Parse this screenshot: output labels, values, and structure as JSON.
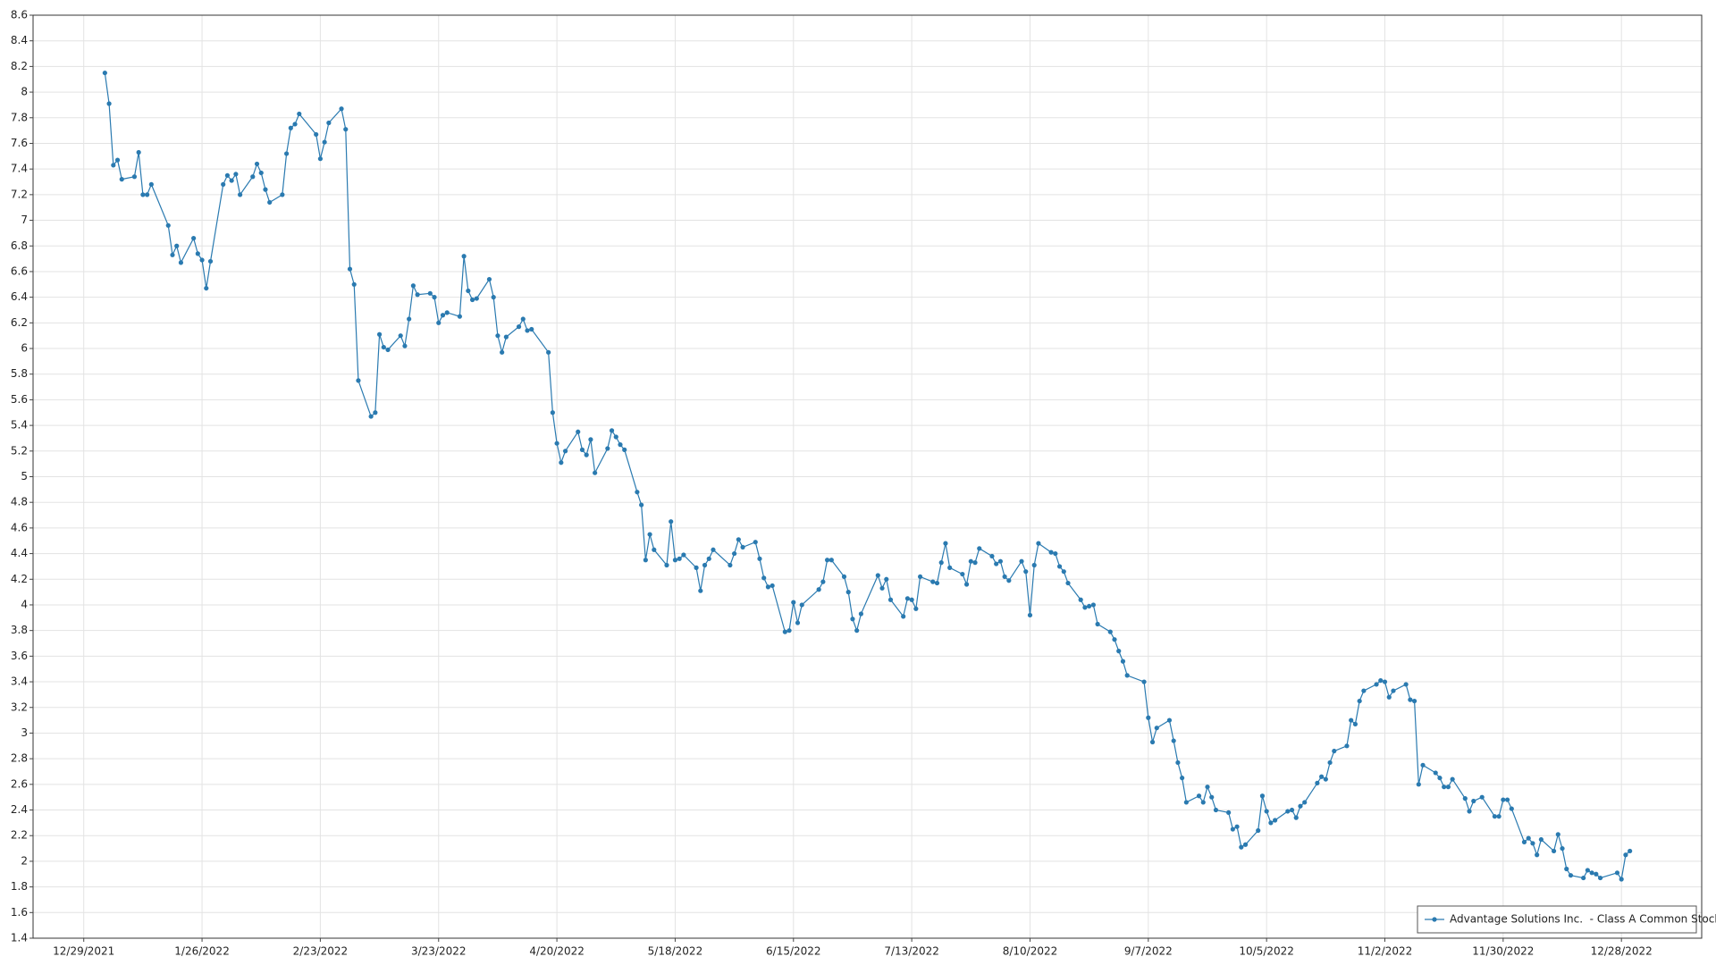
{
  "chart_data": {
    "type": "line",
    "x": [
      "1/3/2022",
      "1/4/2022",
      "1/5/2022",
      "1/6/2022",
      "1/7/2022",
      "1/10/2022",
      "1/11/2022",
      "1/12/2022",
      "1/13/2022",
      "1/14/2022",
      "1/18/2022",
      "1/19/2022",
      "1/20/2022",
      "1/21/2022",
      "1/24/2022",
      "1/25/2022",
      "1/26/2022",
      "1/27/2022",
      "1/28/2022",
      "1/31/2022",
      "2/1/2022",
      "2/2/2022",
      "2/3/2022",
      "2/4/2022",
      "2/7/2022",
      "2/8/2022",
      "2/9/2022",
      "2/10/2022",
      "2/11/2022",
      "2/14/2022",
      "2/15/2022",
      "2/16/2022",
      "2/17/2022",
      "2/18/2022",
      "2/22/2022",
      "2/23/2022",
      "2/24/2022",
      "2/25/2022",
      "2/28/2022",
      "3/1/2022",
      "3/2/2022",
      "3/3/2022",
      "3/4/2022",
      "3/7/2022",
      "3/8/2022",
      "3/9/2022",
      "3/10/2022",
      "3/11/2022",
      "3/14/2022",
      "3/15/2022",
      "3/16/2022",
      "3/17/2022",
      "3/18/2022",
      "3/21/2022",
      "3/22/2022",
      "3/23/2022",
      "3/24/2022",
      "3/25/2022",
      "3/28/2022",
      "3/29/2022",
      "3/30/2022",
      "3/31/2022",
      "4/1/2022",
      "4/4/2022",
      "4/5/2022",
      "4/6/2022",
      "4/7/2022",
      "4/8/2022",
      "4/11/2022",
      "4/12/2022",
      "4/13/2022",
      "4/14/2022",
      "4/18/2022",
      "4/19/2022",
      "4/20/2022",
      "4/21/2022",
      "4/22/2022",
      "4/25/2022",
      "4/26/2022",
      "4/27/2022",
      "4/28/2022",
      "4/29/2022",
      "5/2/2022",
      "5/3/2022",
      "5/4/2022",
      "5/5/2022",
      "5/6/2022",
      "5/9/2022",
      "5/10/2022",
      "5/11/2022",
      "5/12/2022",
      "5/13/2022",
      "5/16/2022",
      "5/17/2022",
      "5/18/2022",
      "5/19/2022",
      "5/20/2022",
      "5/23/2022",
      "5/24/2022",
      "5/25/2022",
      "5/26/2022",
      "5/27/2022",
      "5/31/2022",
      "6/1/2022",
      "6/2/2022",
      "6/3/2022",
      "6/6/2022",
      "6/7/2022",
      "6/8/2022",
      "6/9/2022",
      "6/10/2022",
      "6/13/2022",
      "6/14/2022",
      "6/15/2022",
      "6/16/2022",
      "6/17/2022",
      "6/21/2022",
      "6/22/2022",
      "6/23/2022",
      "6/24/2022",
      "6/27/2022",
      "6/28/2022",
      "6/29/2022",
      "6/30/2022",
      "7/1/2022",
      "7/5/2022",
      "7/6/2022",
      "7/7/2022",
      "7/8/2022",
      "7/11/2022",
      "7/12/2022",
      "7/13/2022",
      "7/14/2022",
      "7/15/2022",
      "7/18/2022",
      "7/19/2022",
      "7/20/2022",
      "7/21/2022",
      "7/22/2022",
      "7/25/2022",
      "7/26/2022",
      "7/27/2022",
      "7/28/2022",
      "7/29/2022",
      "8/1/2022",
      "8/2/2022",
      "8/3/2022",
      "8/4/2022",
      "8/5/2022",
      "8/8/2022",
      "8/9/2022",
      "8/10/2022",
      "8/11/2022",
      "8/12/2022",
      "8/15/2022",
      "8/16/2022",
      "8/17/2022",
      "8/18/2022",
      "8/19/2022",
      "8/22/2022",
      "8/23/2022",
      "8/24/2022",
      "8/25/2022",
      "8/26/2022",
      "8/29/2022",
      "8/30/2022",
      "8/31/2022",
      "9/1/2022",
      "9/2/2022",
      "9/6/2022",
      "9/7/2022",
      "9/8/2022",
      "9/9/2022",
      "9/12/2022",
      "9/13/2022",
      "9/14/2022",
      "9/15/2022",
      "9/16/2022",
      "9/19/2022",
      "9/20/2022",
      "9/21/2022",
      "9/22/2022",
      "9/23/2022",
      "9/26/2022",
      "9/27/2022",
      "9/28/2022",
      "9/29/2022",
      "9/30/2022",
      "10/3/2022",
      "10/4/2022",
      "10/5/2022",
      "10/6/2022",
      "10/7/2022",
      "10/10/2022",
      "10/11/2022",
      "10/12/2022",
      "10/13/2022",
      "10/14/2022",
      "10/17/2022",
      "10/18/2022",
      "10/19/2022",
      "10/20/2022",
      "10/21/2022",
      "10/24/2022",
      "10/25/2022",
      "10/26/2022",
      "10/27/2022",
      "10/28/2022",
      "10/31/2022",
      "11/1/2022",
      "11/2/2022",
      "11/3/2022",
      "11/4/2022",
      "11/7/2022",
      "11/8/2022",
      "11/9/2022",
      "11/10/2022",
      "11/11/2022",
      "11/14/2022",
      "11/15/2022",
      "11/16/2022",
      "11/17/2022",
      "11/18/2022",
      "11/21/2022",
      "11/22/2022",
      "11/23/2022",
      "11/25/2022",
      "11/28/2022",
      "11/29/2022",
      "11/30/2022",
      "12/1/2022",
      "12/2/2022",
      "12/5/2022",
      "12/6/2022",
      "12/7/2022",
      "12/8/2022",
      "12/9/2022",
      "12/12/2022",
      "12/13/2022",
      "12/14/2022",
      "12/15/2022",
      "12/16/2022",
      "12/19/2022",
      "12/20/2022",
      "12/21/2022",
      "12/22/2022",
      "12/23/2022",
      "12/27/2022",
      "12/28/2022",
      "12/29/2022",
      "12/30/2022"
    ],
    "series": [
      {
        "name": "Advantage Solutions Inc.  - Class A Common Stock",
        "color": "#2a7ab0",
        "values": [
          8.15,
          7.91,
          7.43,
          7.47,
          7.32,
          7.34,
          7.53,
          7.2,
          7.2,
          7.28,
          6.96,
          6.73,
          6.8,
          6.67,
          6.86,
          6.74,
          6.69,
          6.47,
          6.68,
          7.28,
          7.35,
          7.31,
          7.36,
          7.2,
          7.34,
          7.44,
          7.37,
          7.24,
          7.14,
          7.2,
          7.52,
          7.72,
          7.75,
          7.83,
          7.67,
          7.48,
          7.61,
          7.76,
          7.87,
          7.71,
          6.62,
          6.5,
          5.75,
          5.47,
          5.5,
          6.11,
          6.01,
          5.99,
          6.1,
          6.02,
          6.23,
          6.49,
          6.42,
          6.43,
          6.4,
          6.2,
          6.26,
          6.28,
          6.25,
          6.72,
          6.45,
          6.38,
          6.39,
          6.54,
          6.4,
          6.1,
          5.97,
          6.09,
          6.17,
          6.23,
          6.14,
          6.15,
          5.97,
          5.5,
          5.26,
          5.11,
          5.2,
          5.35,
          5.21,
          5.17,
          5.29,
          5.03,
          5.22,
          5.36,
          5.31,
          5.25,
          5.21,
          4.88,
          4.78,
          4.35,
          4.55,
          4.43,
          4.31,
          4.65,
          4.35,
          4.36,
          4.39,
          4.29,
          4.11,
          4.31,
          4.36,
          4.43,
          4.31,
          4.4,
          4.51,
          4.45,
          4.49,
          4.36,
          4.21,
          4.14,
          4.15,
          3.79,
          3.8,
          4.02,
          3.86,
          4,
          4.12,
          4.18,
          4.35,
          4.35,
          4.22,
          4.1,
          3.89,
          3.8,
          3.93,
          4.23,
          4.13,
          4.2,
          4.04,
          3.91,
          4.05,
          4.04,
          3.97,
          4.22,
          4.18,
          4.17,
          4.33,
          4.48,
          4.29,
          4.24,
          4.16,
          4.34,
          4.33,
          4.44,
          4.38,
          4.32,
          4.34,
          4.22,
          4.19,
          4.34,
          4.26,
          3.92,
          4.31,
          4.48,
          4.41,
          4.4,
          4.3,
          4.26,
          4.17,
          4.04,
          3.98,
          3.99,
          4,
          3.85,
          3.79,
          3.73,
          3.64,
          3.56,
          3.45,
          3.4,
          3.12,
          2.93,
          3.04,
          3.1,
          2.94,
          2.77,
          2.65,
          2.46,
          2.51,
          2.46,
          2.58,
          2.5,
          2.4,
          2.38,
          2.25,
          2.27,
          2.11,
          2.13,
          2.24,
          2.51,
          2.39,
          2.3,
          2.32,
          2.39,
          2.4,
          2.34,
          2.43,
          2.46,
          2.61,
          2.66,
          2.64,
          2.77,
          2.86,
          2.9,
          3.1,
          3.07,
          3.25,
          3.33,
          3.38,
          3.41,
          3.4,
          3.28,
          3.33,
          3.38,
          3.26,
          3.25,
          2.6,
          2.75,
          2.69,
          2.65,
          2.58,
          2.58,
          2.64,
          2.49,
          2.39,
          2.47,
          2.5,
          2.35,
          2.35,
          2.48,
          2.48,
          2.41,
          2.15,
          2.18,
          2.14,
          2.05,
          2.17,
          2.08,
          2.21,
          2.1,
          1.94,
          1.89,
          1.87,
          1.93,
          1.91,
          1.9,
          1.87,
          1.91,
          1.86,
          2.05,
          2.08
        ]
      }
    ],
    "xlim": [
      "12/17/2021",
      "1/16/2023"
    ],
    "xticks": [
      "12/29/2021",
      "1/26/2022",
      "2/23/2022",
      "3/23/2022",
      "4/20/2022",
      "5/18/2022",
      "6/15/2022",
      "7/13/2022",
      "8/10/2022",
      "9/7/2022",
      "10/5/2022",
      "11/2/2022",
      "11/30/2022",
      "12/28/2022"
    ],
    "ylim": [
      1.4,
      8.6
    ],
    "yticks": [
      1.4,
      1.6,
      1.8,
      2,
      2.2,
      2.4,
      2.6,
      2.8,
      3,
      3.2,
      3.4,
      3.6,
      3.8,
      4,
      4.2,
      4.4,
      4.6,
      4.8,
      5,
      5.2,
      5.4,
      5.6,
      5.8,
      6,
      6.2,
      6.4,
      6.6,
      6.8,
      7,
      7.2,
      7.4,
      7.6,
      7.8,
      8,
      8.2,
      8.4,
      8.6
    ],
    "grid": true,
    "legend": "bottom-right"
  }
}
